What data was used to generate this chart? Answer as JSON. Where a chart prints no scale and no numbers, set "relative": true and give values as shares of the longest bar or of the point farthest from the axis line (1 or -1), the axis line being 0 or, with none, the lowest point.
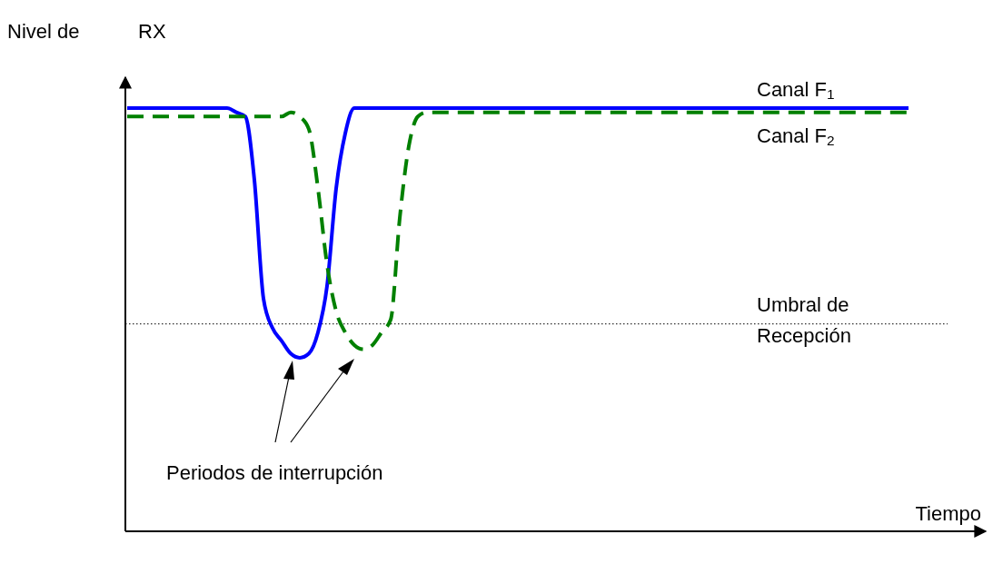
{
  "chart_data": {
    "type": "line",
    "relative": true,
    "ylabel": "Nivel de RX",
    "xlabel": "Tiempo",
    "categories": [
      null,
      null,
      null,
      null,
      null,
      null,
      null,
      null,
      null,
      null,
      null,
      null,
      null,
      null,
      null,
      null,
      null,
      null,
      null,
      null,
      null,
      null,
      null,
      null,
      null,
      null,
      null,
      null,
      null,
      null,
      null,
      null,
      null,
      null,
      null,
      null,
      null,
      null,
      null,
      null,
      null,
      null,
      null,
      null,
      null,
      null,
      null,
      null,
      null,
      null,
      null,
      null,
      null,
      null,
      null,
      null,
      null,
      null,
      null,
      null,
      null,
      null,
      null,
      null,
      null,
      null,
      null,
      null,
      null,
      null,
      null,
      null,
      null,
      null,
      null,
      null,
      null,
      null,
      null,
      null,
      null,
      null,
      null,
      null,
      null,
      null,
      null
    ],
    "series": [
      {
        "name": "Canal F$_{1}$",
        "color": "#0000ff",
        "line_style": "solid",
        "values": [
          1,
          1,
          1,
          1,
          1,
          1,
          1,
          1,
          1,
          1,
          1,
          1,
          0.99,
          0.98,
          0.83,
          0.55,
          0.48,
          0.45,
          0.42,
          0.41,
          0.42,
          0.47,
          0.58,
          0.81,
          0.94,
          1,
          1,
          1,
          1,
          1,
          1,
          1,
          1,
          1,
          1,
          1,
          1,
          1,
          1,
          1,
          1,
          1,
          1,
          1,
          1,
          1,
          1,
          1,
          1,
          1,
          1,
          1,
          1,
          1,
          1,
          1,
          1,
          1,
          1,
          1,
          1,
          1,
          1,
          1,
          1,
          1,
          1,
          1,
          1,
          1,
          1,
          1,
          1,
          1,
          1,
          1,
          1,
          1,
          1,
          1,
          1,
          1,
          1,
          1,
          1,
          1,
          1
        ]
      },
      {
        "name": "Canal F$_{2}$",
        "color": "#008000",
        "line_style": "dashed",
        "values": [
          0.98,
          0.98,
          0.98,
          0.98,
          0.98,
          0.98,
          0.98,
          0.98,
          0.98,
          0.98,
          0.98,
          0.98,
          0.98,
          0.98,
          0.98,
          0.98,
          0.98,
          0.98,
          0.99,
          0.98,
          0.95,
          0.81,
          0.63,
          0.52,
          0.47,
          0.44,
          0.43,
          0.44,
          0.47,
          0.5,
          0.74,
          0.91,
          0.98,
          0.99,
          0.99,
          0.99,
          0.99,
          0.99,
          0.99,
          0.99,
          0.99,
          0.99,
          0.99,
          0.99,
          0.99,
          0.99,
          0.99,
          0.99,
          0.99,
          0.99,
          0.99,
          0.99,
          0.99,
          0.99,
          0.99,
          0.99,
          0.99,
          0.99,
          0.99,
          0.99,
          0.99,
          0.99,
          0.99,
          0.99,
          0.99,
          0.99,
          0.99,
          0.99,
          0.99,
          0.99,
          0.99,
          0.99,
          0.99,
          0.99,
          0.99,
          0.99,
          0.99,
          0.99,
          0.99,
          0.99,
          0.99,
          0.99,
          0.99,
          0.99,
          0.99,
          0.99,
          0.99
        ]
      }
    ],
    "ref_lines": [
      {
        "axis": "y",
        "value": 0.49,
        "label": "Umbral de Recepción",
        "color": "#000000",
        "line_style": "dotted"
      }
    ],
    "annotations": [
      "Periodos de interrupción"
    ]
  }
}
